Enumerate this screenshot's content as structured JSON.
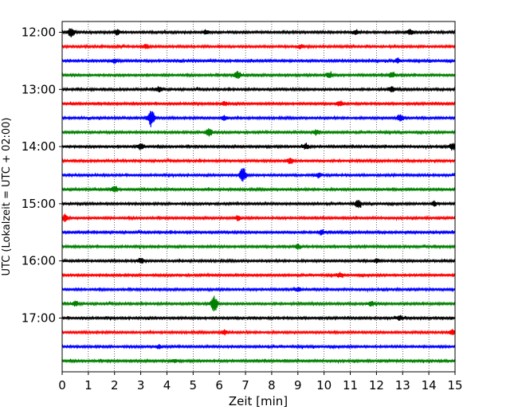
{
  "chart_data": {
    "type": "line",
    "xlabel": "Zeit  [min]",
    "ylabel": "UTC (Lokalzeit = UTC + 02:00)",
    "xlim": [
      0,
      15
    ],
    "x_ticks": [
      0,
      1,
      2,
      3,
      4,
      5,
      6,
      7,
      8,
      9,
      10,
      11,
      12,
      13,
      14,
      15
    ],
    "x_tick_labels": [
      "0",
      "1",
      "2",
      "3",
      "4",
      "5",
      "6",
      "7",
      "8",
      "9",
      "10",
      "11",
      "12",
      "13",
      "14",
      "15"
    ],
    "y_ticks": [
      "12:00",
      "13:00",
      "14:00",
      "15:00",
      "16:00",
      "17:00"
    ],
    "row_interval_min": 15,
    "grid": "x-dotted",
    "colors": [
      "#000000",
      "#ff0000",
      "#0000ff",
      "#008000"
    ],
    "rows": [
      {
        "time": "12:00",
        "color": "#000000",
        "events": [
          {
            "t": 0.35,
            "amp": 0.6
          },
          {
            "t": 2.1,
            "amp": 0.3
          },
          {
            "t": 5.5,
            "amp": 0.3
          },
          {
            "t": 11.2,
            "amp": 0.3
          },
          {
            "t": 13.3,
            "amp": 0.35
          }
        ]
      },
      {
        "time": "12:15",
        "color": "#ff0000",
        "events": [
          {
            "t": 3.2,
            "amp": 0.25
          },
          {
            "t": 9.1,
            "amp": 0.25
          }
        ]
      },
      {
        "time": "12:30",
        "color": "#0000ff",
        "events": [
          {
            "t": 2.0,
            "amp": 0.25
          },
          {
            "t": 12.8,
            "amp": 0.25
          }
        ]
      },
      {
        "time": "12:45",
        "color": "#008000",
        "events": [
          {
            "t": 6.7,
            "amp": 0.5
          },
          {
            "t": 10.2,
            "amp": 0.35
          },
          {
            "t": 12.6,
            "amp": 0.35
          }
        ]
      },
      {
        "time": "13:00",
        "color": "#000000",
        "events": [
          {
            "t": 3.7,
            "amp": 0.35
          },
          {
            "t": 12.6,
            "amp": 0.3
          }
        ]
      },
      {
        "time": "13:15",
        "color": "#ff0000",
        "events": [
          {
            "t": 6.2,
            "amp": 0.25
          },
          {
            "t": 10.6,
            "amp": 0.3
          }
        ]
      },
      {
        "time": "13:30",
        "color": "#0000ff",
        "events": [
          {
            "t": 3.4,
            "amp": 1.1
          },
          {
            "t": 6.2,
            "amp": 0.3
          },
          {
            "t": 12.9,
            "amp": 0.45
          }
        ]
      },
      {
        "time": "13:45",
        "color": "#008000",
        "events": [
          {
            "t": 5.6,
            "amp": 0.55
          },
          {
            "t": 9.7,
            "amp": 0.3
          }
        ]
      },
      {
        "time": "14:00",
        "color": "#000000",
        "events": [
          {
            "t": 3.0,
            "amp": 0.35
          },
          {
            "t": 9.3,
            "amp": 0.35
          },
          {
            "t": 14.9,
            "amp": 0.45
          }
        ]
      },
      {
        "time": "14:15",
        "color": "#ff0000",
        "events": [
          {
            "t": 8.7,
            "amp": 0.45
          }
        ]
      },
      {
        "time": "14:30",
        "color": "#0000ff",
        "events": [
          {
            "t": 6.9,
            "amp": 0.95
          },
          {
            "t": 9.8,
            "amp": 0.3
          }
        ]
      },
      {
        "time": "14:45",
        "color": "#008000",
        "events": [
          {
            "t": 2.0,
            "amp": 0.35
          }
        ]
      },
      {
        "time": "15:00",
        "color": "#000000",
        "events": [
          {
            "t": 11.3,
            "amp": 0.45
          },
          {
            "t": 14.2,
            "amp": 0.3
          }
        ]
      },
      {
        "time": "15:15",
        "color": "#ff0000",
        "events": [
          {
            "t": 0.1,
            "amp": 0.4
          },
          {
            "t": 6.7,
            "amp": 0.25
          }
        ]
      },
      {
        "time": "15:30",
        "color": "#0000ff",
        "events": [
          {
            "t": 9.9,
            "amp": 0.3
          }
        ]
      },
      {
        "time": "15:45",
        "color": "#008000",
        "events": [
          {
            "t": 9.0,
            "amp": 0.3
          }
        ]
      },
      {
        "time": "16:00",
        "color": "#000000",
        "events": [
          {
            "t": 3.0,
            "amp": 0.3
          },
          {
            "t": 12.0,
            "amp": 0.25
          }
        ]
      },
      {
        "time": "16:15",
        "color": "#ff0000",
        "events": [
          {
            "t": 10.6,
            "amp": 0.25
          }
        ]
      },
      {
        "time": "16:30",
        "color": "#0000ff",
        "events": [
          {
            "t": 9.0,
            "amp": 0.25
          }
        ]
      },
      {
        "time": "16:45",
        "color": "#008000",
        "events": [
          {
            "t": 0.5,
            "amp": 0.3
          },
          {
            "t": 5.8,
            "amp": 1.0
          },
          {
            "t": 11.8,
            "amp": 0.3
          }
        ]
      },
      {
        "time": "17:00",
        "color": "#000000",
        "events": [
          {
            "t": 12.9,
            "amp": 0.3
          }
        ]
      },
      {
        "time": "17:15",
        "color": "#ff0000",
        "events": [
          {
            "t": 6.2,
            "amp": 0.3
          },
          {
            "t": 14.9,
            "amp": 0.35
          }
        ]
      },
      {
        "time": "17:30",
        "color": "#0000ff",
        "events": [
          {
            "t": 3.7,
            "amp": 0.2
          }
        ]
      },
      {
        "time": "17:45",
        "color": "#008000",
        "events": [
          {
            "t": 4.3,
            "amp": 0.2
          }
        ]
      }
    ]
  }
}
